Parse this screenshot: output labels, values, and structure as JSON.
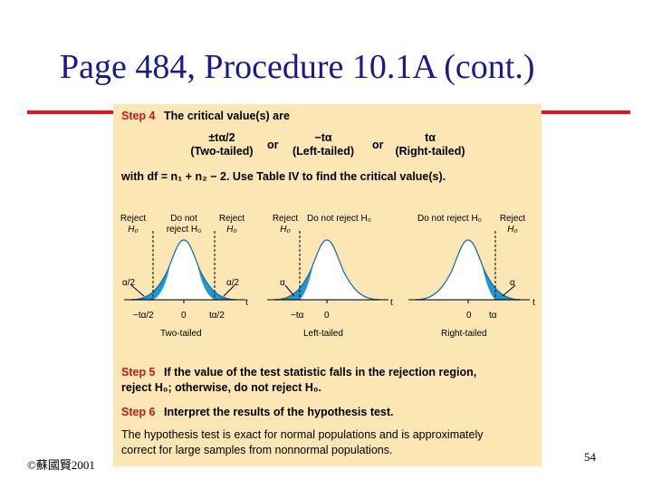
{
  "slide": {
    "title": "Page 484, Procedure 10.1A (cont.)",
    "footer_left": "©蘇國賢2001",
    "page_number": "54",
    "accent_color": "#e2141c",
    "title_color": "#1a1a8c",
    "panel_color": "#fbe6b4"
  },
  "procedure": {
    "step4": {
      "label": "Step 4",
      "text": "The critical value(s) are",
      "options": [
        {
          "value": "±tα/2",
          "caption": "(Two-tailed)"
        },
        {
          "value": "−tα",
          "caption": "(Left-tailed)"
        },
        {
          "value": "tα",
          "caption": "(Right-tailed)"
        }
      ],
      "or_text": "or",
      "df_text": "with df = n₁ + n₂ − 2. Use Table IV to find the critical value(s)."
    },
    "graphs": [
      {
        "caption": "Two-tailed",
        "labels": {
          "reject_left": "Reject",
          "reject_left_h": "H₀",
          "do_not": "Do not",
          "do_not_h": "reject H₀",
          "reject_right": "Reject",
          "reject_right_h": "H₀",
          "alpha_left": "α/2",
          "alpha_right": "α/2",
          "tick_left": "−tα/2",
          "tick_mid": "0",
          "tick_right": "tα/2",
          "axis": "t"
        }
      },
      {
        "caption": "Left-tailed",
        "labels": {
          "reject": "Reject",
          "reject_h": "H₀",
          "do_not": "Do not reject H₀",
          "alpha": "α",
          "tick_left": "−tα",
          "tick_mid": "0",
          "axis": "t"
        }
      },
      {
        "caption": "Right-tailed",
        "labels": {
          "do_not": "Do not reject H₀",
          "reject": "Reject",
          "reject_h": "H₀",
          "alpha": "α",
          "tick_mid": "0",
          "tick_right": "tα",
          "axis": "t"
        }
      }
    ],
    "step5": {
      "label": "Step 5",
      "line1": "If the value of the test statistic falls in the rejection region,",
      "line2": "reject H₀; otherwise, do not reject H₀."
    },
    "step6": {
      "label": "Step 6",
      "text": "Interpret the results of the hypothesis test."
    },
    "note_line1": "The hypothesis test is exact for normal populations and is approximately",
    "note_line2": "correct for large samples from nonnormal populations."
  }
}
